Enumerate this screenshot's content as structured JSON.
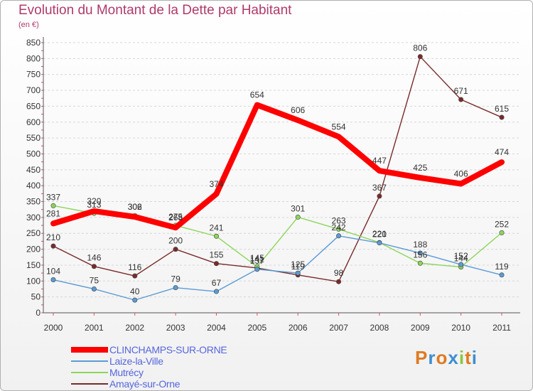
{
  "title": "Evolution du Montant de la Dette par Habitant",
  "subtitle": "(en €)",
  "logo": {
    "letters": [
      "P",
      "r",
      "o",
      "x",
      "i",
      "t",
      "i"
    ],
    "colors": [
      "#e07a1f",
      "#3d8fd1",
      "#e07a1f",
      "#3d8fd1",
      "#8cc63f",
      "#e07a1f",
      "#3d8fd1"
    ]
  },
  "chart_data": {
    "type": "line",
    "title": "Evolution du Montant de la Dette par Habitant",
    "ylabel": "(en €)",
    "xlabel": "",
    "x": [
      "2000",
      "2001",
      "2002",
      "2003",
      "2004",
      "2005",
      "2006",
      "2007",
      "2008",
      "2009",
      "2010",
      "2011"
    ],
    "ylim": [
      0,
      850
    ],
    "yticks": [
      0,
      50,
      100,
      150,
      200,
      250,
      300,
      350,
      400,
      450,
      500,
      550,
      600,
      650,
      700,
      750,
      800,
      850
    ],
    "grid": "horizontal dashed",
    "legend_position": "bottom-left",
    "series": [
      {
        "name": "CLINCHAMPS-SUR-ORNE",
        "color": "#ff0000",
        "values": [
          281,
          320,
          302,
          268,
          374,
          654,
          606,
          554,
          447,
          425,
          406,
          474
        ],
        "labels": [
          "281",
          "320",
          "302",
          "268",
          "374",
          "654",
          "606",
          "554",
          "447",
          "425",
          "406",
          "474"
        ]
      },
      {
        "name": "Laize-la-Ville",
        "color": "#5b9bd5",
        "values": [
          104,
          75,
          40,
          79,
          67,
          137,
          125,
          242,
          220,
          188,
          152,
          119
        ],
        "labels": [
          "104",
          "75",
          "40",
          "79",
          "67",
          "137",
          "125",
          "242",
          "220",
          "188",
          "152",
          "119"
        ]
      },
      {
        "name": "Mutrécy",
        "color": "#8cd65a",
        "values": [
          337,
          313,
          306,
          275,
          241,
          145,
          301,
          263,
          221,
          156,
          144,
          252
        ],
        "labels": [
          "337",
          "313",
          "306",
          "275",
          "241",
          "145",
          "301",
          "263",
          "221",
          "156",
          "144",
          "252"
        ]
      },
      {
        "name": "Amayé-sur-Orne",
        "color": "#7a2a2a",
        "values": [
          210,
          146,
          116,
          200,
          155,
          141,
          119,
          98,
          367,
          806,
          671,
          615
        ],
        "labels": [
          "210",
          "146",
          "116",
          "200",
          "155",
          "141",
          "119",
          "98",
          "367",
          "806",
          "671",
          "615"
        ]
      }
    ]
  }
}
